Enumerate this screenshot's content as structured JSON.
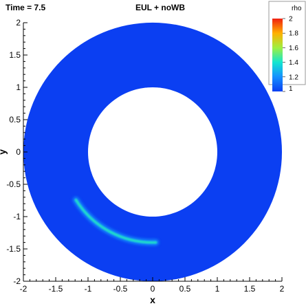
{
  "header": {
    "time_label": "Time = 7.5",
    "title": "EUL + noWB"
  },
  "chart_data": {
    "type": "heatmap",
    "title": "EUL + noWB",
    "xlabel": "x",
    "ylabel": "y",
    "xlim": [
      -2,
      2
    ],
    "ylim": [
      -2,
      2
    ],
    "x_ticks": [
      "-2",
      "-1.5",
      "-1",
      "-0.5",
      "0",
      "0.5",
      "1",
      "1.5",
      "2"
    ],
    "y_ticks": [
      "-2",
      "-1.5",
      "-1",
      "-0.5",
      "0",
      "0.5",
      "1",
      "1.5",
      "2"
    ],
    "domain": {
      "shape": "annulus",
      "center": [
        0,
        0
      ],
      "inner_radius": 1,
      "outer_radius": 2
    },
    "background_value": 1.0,
    "feature": {
      "description_value": "crescent of elevated density",
      "center_radius": 1.4,
      "angle_start_deg": 212,
      "angle_end_deg": 272,
      "peak_angle_deg": 253,
      "peak_value": 1.42
    },
    "colorbar": {
      "label": "rho",
      "min": 1,
      "max": 2,
      "ticks": [
        "2",
        "1.8",
        "1.6",
        "1.4",
        "1.2",
        "1"
      ],
      "tick_values": [
        2,
        1.8,
        1.6,
        1.4,
        1.2,
        1
      ]
    }
  }
}
